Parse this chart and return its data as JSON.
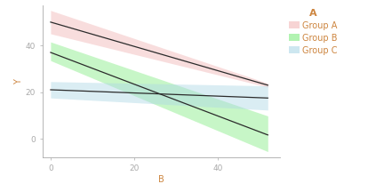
{
  "title": "",
  "xlabel": "B",
  "ylabel": "Y",
  "xlim": [
    -2,
    55
  ],
  "ylim": [
    -8,
    57
  ],
  "xticks": [
    0,
    20,
    40
  ],
  "yticks": [
    0,
    20,
    40
  ],
  "background_color": "#ffffff",
  "panel_background": "#ffffff",
  "legend_title": "A",
  "groups": [
    {
      "name": "Group A",
      "line_color": "#2b2b2b",
      "fill_color": "#F4C2C2",
      "fill_alpha": 0.55,
      "intercept": 50.0,
      "slope": -0.52,
      "ci_lower_intercept": 55.0,
      "ci_lower_slope": -0.6,
      "ci_upper_intercept": 45.0,
      "ci_upper_slope": -0.44
    },
    {
      "name": "Group B",
      "line_color": "#2b2b2b",
      "fill_color": "#90EE90",
      "fill_alpha": 0.5,
      "intercept": 37.0,
      "slope": -0.68,
      "ci_lower_intercept": 41.5,
      "ci_lower_slope": -0.61,
      "ci_upper_intercept": 33.5,
      "ci_upper_slope": -0.75
    },
    {
      "name": "Group C",
      "line_color": "#2b2b2b",
      "fill_color": "#ADD8E6",
      "fill_alpha": 0.45,
      "intercept": 21.0,
      "slope": -0.068,
      "ci_lower_intercept": 24.5,
      "ci_lower_slope": -0.035,
      "ci_upper_intercept": 17.5,
      "ci_upper_slope": -0.1
    }
  ],
  "legend_fill_colors": [
    "#F4C2C2",
    "#90EE90",
    "#ADD8E6"
  ],
  "legend_fill_alphas": [
    0.7,
    0.7,
    0.6
  ],
  "axis_color": "#aaaaaa",
  "tick_color": "#aaaaaa",
  "label_color": "#cd853f",
  "axis_fontsize": 7,
  "tick_fontsize": 6.5,
  "legend_fontsize": 7,
  "legend_title_fontsize": 8
}
